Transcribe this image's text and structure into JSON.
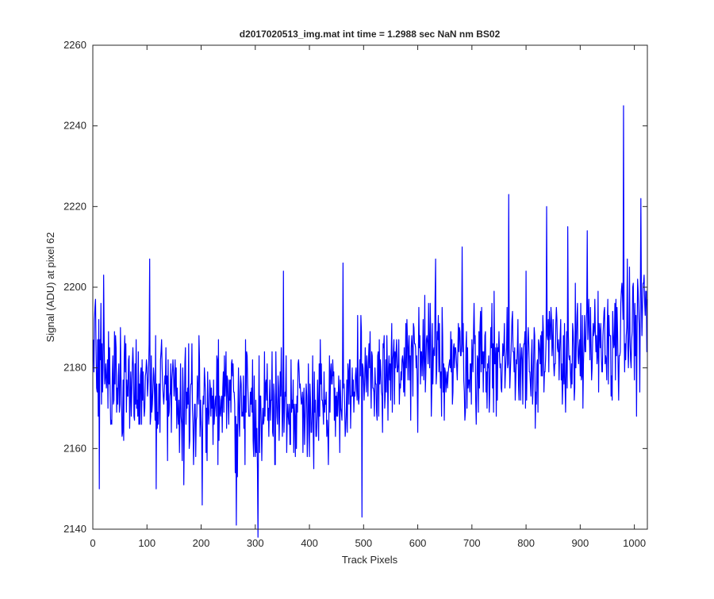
{
  "chart_data": {
    "type": "line",
    "title": "d2017020513_img.mat int time = 1.2988 sec  NaN nm BS02",
    "xlabel": "Track Pixels",
    "ylabel": "Signal (ADU) at pixel 62",
    "xlim": [
      0,
      1024
    ],
    "ylim": [
      2140,
      2260
    ],
    "xticks": [
      0,
      100,
      200,
      300,
      400,
      500,
      600,
      700,
      800,
      900,
      1000
    ],
    "yticks": [
      2140,
      2160,
      2180,
      2200,
      2220,
      2240,
      2260
    ],
    "grid": false,
    "legend": "none",
    "series_color": "#0000ff",
    "series": [
      {
        "x_start": 1,
        "x_step": 1,
        "trend": [
          {
            "x": 0,
            "y": 2181
          },
          {
            "x": 50,
            "y": 2177
          },
          {
            "x": 100,
            "y": 2176
          },
          {
            "x": 150,
            "y": 2174
          },
          {
            "x": 200,
            "y": 2172
          },
          {
            "x": 250,
            "y": 2171
          },
          {
            "x": 300,
            "y": 2170
          },
          {
            "x": 350,
            "y": 2171
          },
          {
            "x": 400,
            "y": 2172
          },
          {
            "x": 450,
            "y": 2173
          },
          {
            "x": 500,
            "y": 2176
          },
          {
            "x": 550,
            "y": 2179
          },
          {
            "x": 600,
            "y": 2181
          },
          {
            "x": 650,
            "y": 2182
          },
          {
            "x": 700,
            "y": 2182
          },
          {
            "x": 750,
            "y": 2182
          },
          {
            "x": 800,
            "y": 2183
          },
          {
            "x": 850,
            "y": 2183
          },
          {
            "x": 900,
            "y": 2184
          },
          {
            "x": 950,
            "y": 2186
          },
          {
            "x": 1000,
            "y": 2190
          },
          {
            "x": 1024,
            "y": 2197
          }
        ],
        "noise_amplitude": 7,
        "peaks": [
          {
            "x": 5,
            "y": 2197
          },
          {
            "x": 12,
            "y": 2150
          },
          {
            "x": 20,
            "y": 2203
          },
          {
            "x": 105,
            "y": 2207
          },
          {
            "x": 117,
            "y": 2150
          },
          {
            "x": 168,
            "y": 2151
          },
          {
            "x": 202,
            "y": 2146
          },
          {
            "x": 265,
            "y": 2141
          },
          {
            "x": 305,
            "y": 2138
          },
          {
            "x": 352,
            "y": 2204
          },
          {
            "x": 462,
            "y": 2206
          },
          {
            "x": 497,
            "y": 2143
          },
          {
            "x": 633,
            "y": 2207
          },
          {
            "x": 682,
            "y": 2210
          },
          {
            "x": 768,
            "y": 2223
          },
          {
            "x": 800,
            "y": 2204
          },
          {
            "x": 838,
            "y": 2220
          },
          {
            "x": 877,
            "y": 2215
          },
          {
            "x": 913,
            "y": 2214
          },
          {
            "x": 980,
            "y": 2245
          },
          {
            "x": 1004,
            "y": 2168
          },
          {
            "x": 1012,
            "y": 2222
          }
        ]
      }
    ]
  }
}
